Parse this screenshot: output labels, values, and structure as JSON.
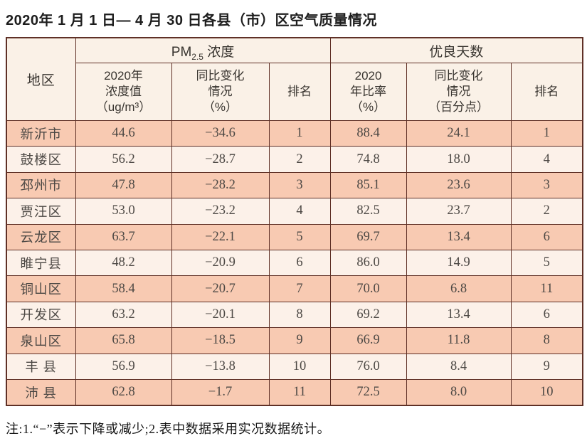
{
  "page": {
    "title": "2020年 1 月 1 日— 4 月 30 日各县（市）区空气质量情况",
    "footnote": "注:1.“−”表示下降或减少;2.表中数据采用实况数据统计。"
  },
  "colors": {
    "border": "#5f3026",
    "row_odd_bg": "#f8cab2",
    "row_even_bg": "#fcf1e9",
    "header_bg": "#faf1e7",
    "text": "#4c4844"
  },
  "table": {
    "corner_header": "地区",
    "group_headers": {
      "pm25": {
        "main": "PM",
        "sub": "2.5",
        "rest": " 浓度"
      },
      "good_days": "优良天数"
    },
    "sub_headers": {
      "pm_value": "2020年\n浓度值\n（ug/m³）",
      "pm_change": "同比变化\n情况\n（%）",
      "pm_rank": "排名",
      "gd_ratio": "2020\n年比率\n（%）",
      "gd_change": "同比变化\n情况\n（百分点）",
      "gd_rank": "排名"
    },
    "rows": [
      {
        "region": "新沂市",
        "pm_value": "44.6",
        "pm_change": "−34.6",
        "pm_rank": "1",
        "gd_ratio": "88.4",
        "gd_change": "24.1",
        "gd_rank": "1"
      },
      {
        "region": "鼓楼区",
        "pm_value": "56.2",
        "pm_change": "−28.7",
        "pm_rank": "2",
        "gd_ratio": "74.8",
        "gd_change": "18.0",
        "gd_rank": "4"
      },
      {
        "region": "邳州市",
        "pm_value": "47.8",
        "pm_change": "−28.2",
        "pm_rank": "3",
        "gd_ratio": "85.1",
        "gd_change": "23.6",
        "gd_rank": "3"
      },
      {
        "region": "贾汪区",
        "pm_value": "53.0",
        "pm_change": "−23.2",
        "pm_rank": "4",
        "gd_ratio": "82.5",
        "gd_change": "23.7",
        "gd_rank": "2"
      },
      {
        "region": "云龙区",
        "pm_value": "63.7",
        "pm_change": "−22.1",
        "pm_rank": "5",
        "gd_ratio": "69.7",
        "gd_change": "13.4",
        "gd_rank": "6"
      },
      {
        "region": "睢宁县",
        "pm_value": "48.2",
        "pm_change": "−20.9",
        "pm_rank": "6",
        "gd_ratio": "86.0",
        "gd_change": "14.9",
        "gd_rank": "5"
      },
      {
        "region": "铜山区",
        "pm_value": "58.4",
        "pm_change": "−20.7",
        "pm_rank": "7",
        "gd_ratio": "70.0",
        "gd_change": "6.8",
        "gd_rank": "11"
      },
      {
        "region": "开发区",
        "pm_value": "63.2",
        "pm_change": "−20.1",
        "pm_rank": "8",
        "gd_ratio": "69.2",
        "gd_change": "13.4",
        "gd_rank": "6"
      },
      {
        "region": "泉山区",
        "pm_value": "65.8",
        "pm_change": "−18.5",
        "pm_rank": "9",
        "gd_ratio": "66.9",
        "gd_change": "11.8",
        "gd_rank": "8"
      },
      {
        "region": "丰 县",
        "pm_value": "56.9",
        "pm_change": "−13.8",
        "pm_rank": "10",
        "gd_ratio": "76.0",
        "gd_change": "8.4",
        "gd_rank": "9"
      },
      {
        "region": "沛 县",
        "pm_value": "62.8",
        "pm_change": "−1.7",
        "pm_rank": "11",
        "gd_ratio": "72.5",
        "gd_change": "8.0",
        "gd_rank": "10"
      }
    ]
  }
}
